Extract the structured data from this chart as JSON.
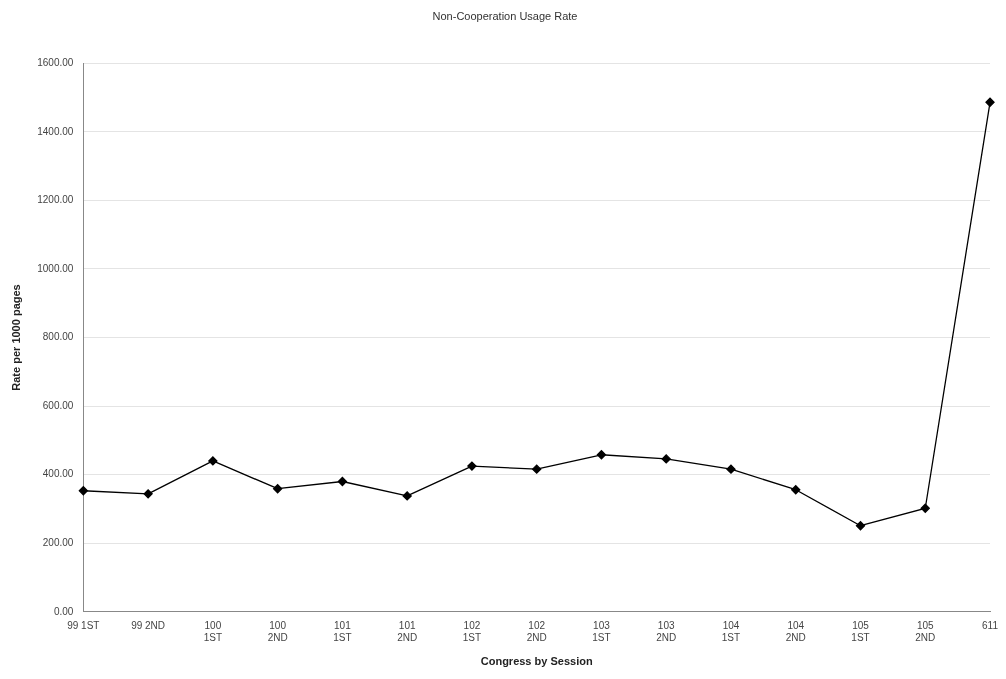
{
  "chart_data": {
    "type": "line",
    "title": "Non-Cooperation Usage Rate",
    "xlabel": "Congress by Session",
    "ylabel": "Rate per 1000 pages",
    "categories": [
      "99 1ST",
      "99 2ND",
      "100 1ST",
      "100 2ND",
      "101 1ST",
      "101 2ND",
      "102 1ST",
      "102 2ND",
      "103 1ST",
      "103 2ND",
      "104 1ST",
      "104 2ND",
      "105 1ST",
      "105 2ND",
      "611"
    ],
    "series": [
      {
        "color": "#000000",
        "values": [
          353,
          344,
          440,
          359,
          380,
          338,
          425,
          416,
          458,
          446,
          416,
          356,
          251,
          302,
          1486
        ]
      }
    ],
    "ylim": [
      0,
      1600
    ],
    "yticks": [
      {
        "value": 0,
        "label": "0.00"
      },
      {
        "value": 200,
        "label": "200.00"
      },
      {
        "value": 400,
        "label": "400.00"
      },
      {
        "value": 600,
        "label": "600.00"
      },
      {
        "value": 800,
        "label": "800.00"
      },
      {
        "value": 1000,
        "label": "1000.00"
      },
      {
        "value": 1200,
        "label": "1200.00"
      },
      {
        "value": 1400,
        "label": "1400.00"
      },
      {
        "value": 1600,
        "label": "1600.00"
      }
    ],
    "grid": "y",
    "legend": false,
    "marker": "diamond",
    "line_style": "solid"
  }
}
